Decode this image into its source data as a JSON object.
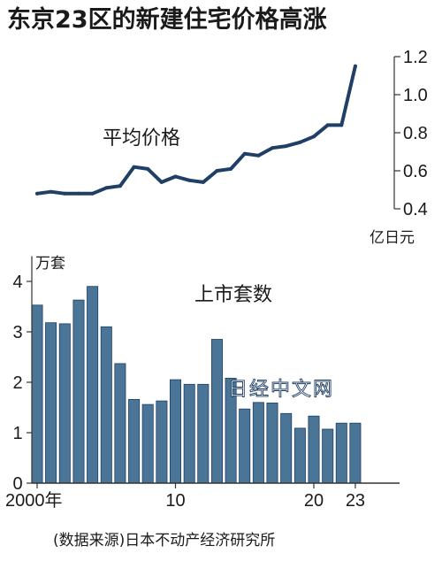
{
  "title": "东京23区的新建住宅价格高涨",
  "source": "(数据来源)日本不动产经济研究所",
  "watermark": "日经中文网",
  "colors": {
    "line": "#1f3f66",
    "bar_fill": "#4a7596",
    "bar_stroke": "#1f3f66",
    "axis": "#333333"
  },
  "chart_data": [
    {
      "type": "line",
      "series_label": "平均价格",
      "unit_label": "亿日元",
      "x": [
        2000,
        2001,
        2002,
        2003,
        2004,
        2005,
        2006,
        2007,
        2008,
        2009,
        2010,
        2011,
        2012,
        2013,
        2014,
        2015,
        2016,
        2017,
        2018,
        2019,
        2020,
        2021,
        2022,
        2023
      ],
      "values": [
        0.48,
        0.49,
        0.48,
        0.48,
        0.48,
        0.51,
        0.52,
        0.62,
        0.61,
        0.54,
        0.57,
        0.55,
        0.54,
        0.6,
        0.61,
        0.69,
        0.68,
        0.72,
        0.73,
        0.75,
        0.78,
        0.84,
        0.84,
        1.15
      ],
      "yticks": [
        "1.2",
        "1.0",
        "0.8",
        "0.6",
        "0.4"
      ],
      "ylim": [
        0.4,
        1.2
      ]
    },
    {
      "type": "bar",
      "series_label": "上市套数",
      "unit_label": "万套",
      "x": [
        2000,
        2001,
        2002,
        2003,
        2004,
        2005,
        2006,
        2007,
        2008,
        2009,
        2010,
        2011,
        2012,
        2013,
        2014,
        2015,
        2016,
        2017,
        2018,
        2019,
        2020,
        2021,
        2022,
        2023
      ],
      "values": [
        3.53,
        3.18,
        3.16,
        3.63,
        3.9,
        3.1,
        2.37,
        1.66,
        1.56,
        1.63,
        2.05,
        1.96,
        1.96,
        2.85,
        2.08,
        1.47,
        1.6,
        1.59,
        1.38,
        1.09,
        1.33,
        1.07,
        1.19,
        1.19
      ],
      "yticks": [
        "4",
        "3",
        "2",
        "1",
        "0"
      ],
      "ylim": [
        0,
        4.5
      ],
      "xticks": [
        {
          "year": 2000,
          "label": "2000年"
        },
        {
          "year": 2010,
          "label": "10"
        },
        {
          "year": 2020,
          "label": "20"
        },
        {
          "year": 2023,
          "label": "23"
        }
      ]
    }
  ]
}
